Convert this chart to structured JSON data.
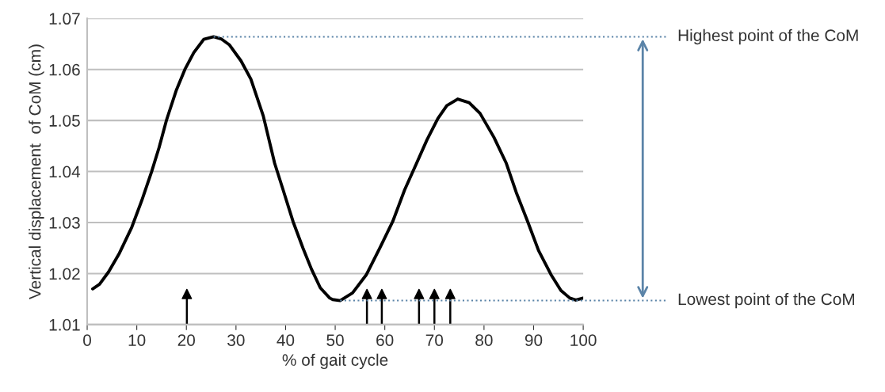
{
  "chart_data": {
    "type": "line",
    "xlabel": "% of gait cycle",
    "ylabel": "Vertical displacement  of CoM (cm)",
    "xlim": [
      0,
      100
    ],
    "xticks": [
      0,
      10,
      20,
      30,
      40,
      50,
      60,
      70,
      80,
      90,
      100
    ],
    "ylim": [
      1.01,
      1.07
    ],
    "yticks": [
      {
        "value": 1.01,
        "label": "1.01"
      },
      {
        "value": 1.02,
        "label": "1.02"
      },
      {
        "value": 1.03,
        "label": "1.03"
      },
      {
        "value": 1.04,
        "label": "1.04"
      },
      {
        "value": 1.05,
        "label": "1.05"
      },
      {
        "value": 1.06,
        "label": "1.06"
      },
      {
        "value": 1.07,
        "label": "1.07"
      }
    ],
    "grid": "y",
    "marker": "none",
    "line_style": "solid",
    "series": [
      {
        "color": "#000000",
        "x": [
          1.1,
          2.5,
          4.3,
          6.5,
          9.0,
          11.0,
          13.0,
          14.5,
          16.0,
          18.0,
          19.7,
          21.5,
          23.5,
          25.5,
          27.0,
          28.7,
          31.0,
          33.0,
          35.5,
          37.8,
          39.5,
          41.5,
          43.5,
          45.2,
          47.0,
          48.9,
          49.5,
          51.0,
          53.5,
          56.3,
          59.0,
          61.6,
          64.0,
          66.4,
          68.5,
          70.7,
          72.5,
          74.7,
          77.0,
          79.2,
          82.0,
          84.5,
          86.5,
          88.8,
          91.0,
          93.5,
          95.5,
          97.3,
          98.5,
          100
        ],
        "values": [
          1.017,
          1.0179,
          1.0203,
          1.024,
          1.0291,
          1.0343,
          1.04,
          1.0447,
          1.0501,
          1.056,
          1.06,
          1.0633,
          1.0659,
          1.0664,
          1.066,
          1.0648,
          1.0617,
          1.0581,
          1.0509,
          1.0416,
          1.0364,
          1.0302,
          1.025,
          1.0209,
          1.0172,
          1.0152,
          1.0149,
          1.0147,
          1.0162,
          1.0198,
          1.025,
          1.0302,
          1.0364,
          1.0416,
          1.0462,
          1.0504,
          1.0529,
          1.0542,
          1.0535,
          1.0514,
          1.0467,
          1.0416,
          1.0359,
          1.0302,
          1.0245,
          1.0198,
          1.0167,
          1.0152,
          1.0148,
          1.0152
        ]
      },
      {
        "type": "scatter",
        "marker": "triangle",
        "color": "#000000",
        "x": [
          20.1,
          56.4,
          59.4,
          66.9,
          70.0,
          73.2
        ],
        "values": [
          1.016,
          1.016,
          1.016,
          1.016,
          1.016,
          1.016
        ],
        "errors": [
          [
            1.01,
            1.016
          ],
          [
            1.01,
            1.016
          ],
          [
            1.01,
            1.016
          ],
          [
            1.01,
            1.016
          ],
          [
            1.01,
            1.016
          ],
          [
            1.01,
            1.016
          ]
        ]
      }
    ],
    "ref_lines": [
      {
        "axis": "y",
        "value": 1.0664,
        "label": "Highest point of the CoM",
        "color": "#5b84a8",
        "line_style": "dotted"
      },
      {
        "axis": "y",
        "value": 1.0147,
        "label": "Lowest point of the CoM",
        "color": "#5b84a8",
        "line_style": "dotted"
      }
    ]
  }
}
